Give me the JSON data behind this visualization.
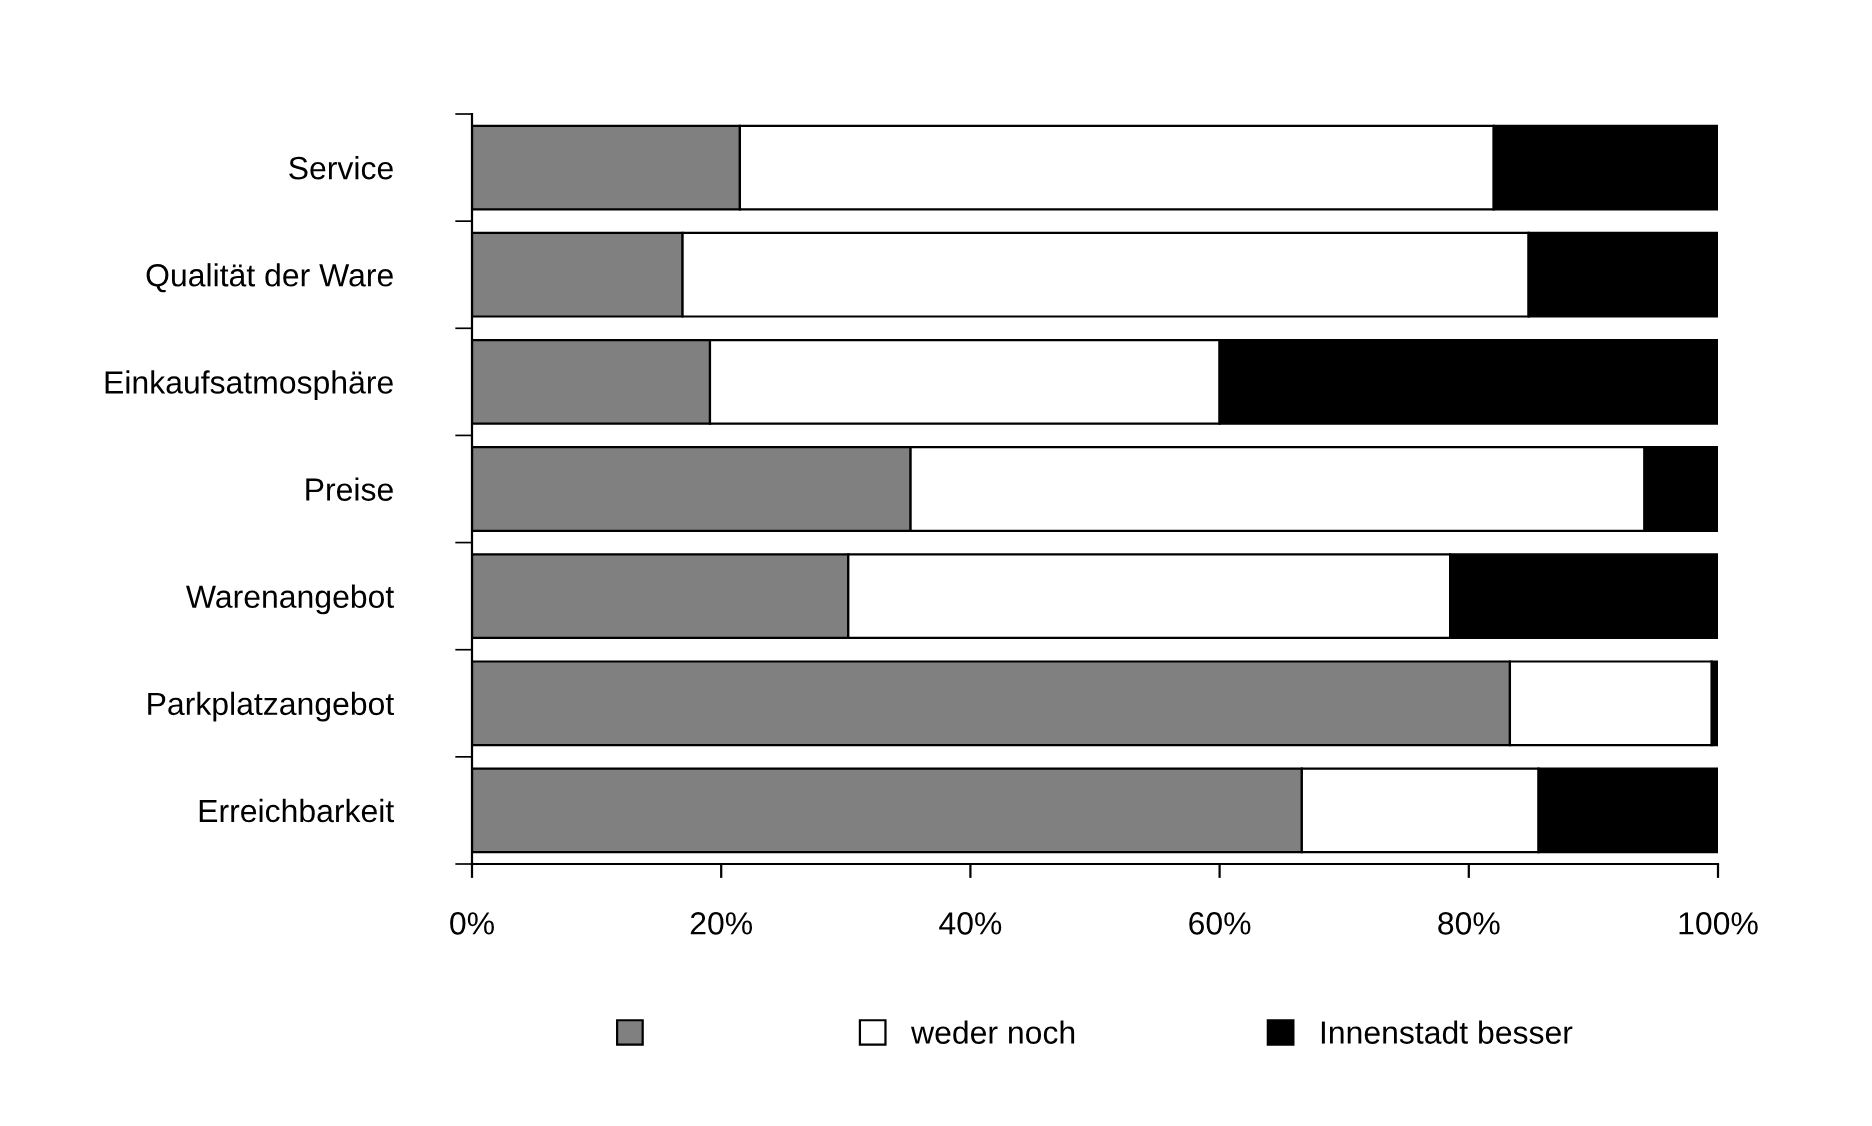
{
  "chart_data": {
    "type": "bar",
    "orientation": "horizontal",
    "stacked": true,
    "categories": [
      "Service",
      "Qualität der Ware",
      "Einkaufsatmosphäre",
      "Preise",
      "Warenangebot",
      "Parkplatzangebot",
      "Erreichbarkeit"
    ],
    "series": [
      {
        "color": "#808080",
        "values": [
          21.5,
          16.9,
          19.1,
          35.2,
          30.2,
          83.3,
          66.6
        ]
      },
      {
        "name": "weder noch",
        "color": "#ffffff",
        "values": [
          60.5,
          67.9,
          40.9,
          58.9,
          48.3,
          16.2,
          19.0
        ]
      },
      {
        "name": "Innenstadt besser",
        "color": "#000000",
        "values": [
          18.0,
          15.2,
          40.0,
          5.9,
          21.5,
          0.5,
          14.4
        ]
      }
    ],
    "xlim": [
      0,
      100
    ],
    "xticks": [
      {
        "value": 0,
        "label": "0%"
      },
      {
        "value": 20,
        "label": "20%"
      },
      {
        "value": 40,
        "label": "40%"
      },
      {
        "value": 60,
        "label": "60%"
      },
      {
        "value": 80,
        "label": "80%"
      },
      {
        "value": 100,
        "label": "100%"
      }
    ],
    "legend": "bottom",
    "grid": false
  }
}
